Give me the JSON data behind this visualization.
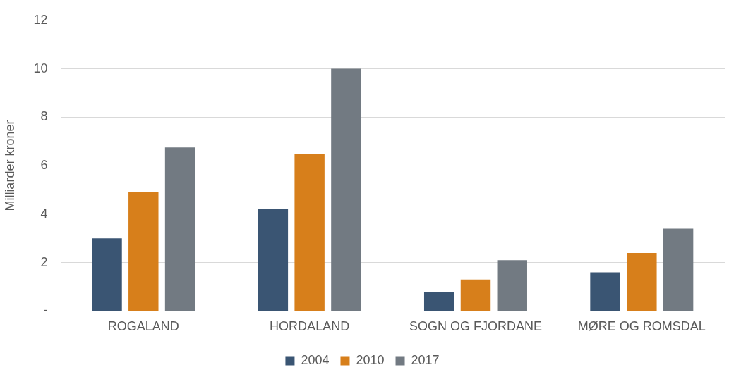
{
  "chart_data": {
    "type": "bar",
    "ylabel": "Milliarder kroner",
    "categories": [
      "ROGALAND",
      "HORDALAND",
      "SOGN OG FJORDANE",
      "MØRE OG ROMSDAL"
    ],
    "series": [
      {
        "name": "2004",
        "color": "#3a5573",
        "values": [
          3.0,
          4.2,
          0.8,
          1.6
        ]
      },
      {
        "name": "2010",
        "color": "#d77f1b",
        "values": [
          4.9,
          6.5,
          1.3,
          2.4
        ]
      },
      {
        "name": "2017",
        "color": "#727a82",
        "values": [
          6.75,
          10.0,
          2.1,
          3.4
        ]
      }
    ],
    "ylim": [
      0,
      12
    ],
    "yticks": [
      {
        "value": 0,
        "label": "-"
      },
      2,
      4,
      6,
      8,
      10,
      12
    ],
    "grid": "y",
    "legend": "bottom"
  }
}
